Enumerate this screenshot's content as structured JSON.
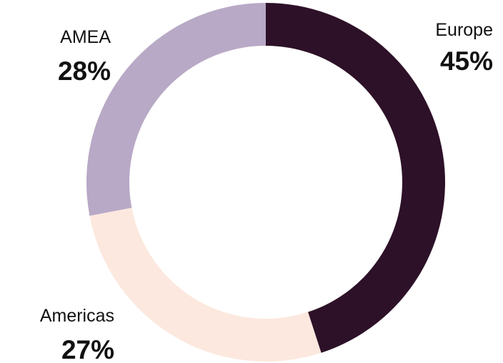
{
  "chart_data": {
    "type": "pie",
    "variant": "donut",
    "title": "",
    "legend": "none",
    "slices": [
      {
        "label": "Europe",
        "value": 45,
        "display": "45%",
        "color": "#2d1128"
      },
      {
        "label": "Americas",
        "value": 27,
        "display": "27%",
        "color": "#fce8de"
      },
      {
        "label": "AMEA",
        "value": 28,
        "display": "28%",
        "color": "#b8a9c6"
      }
    ],
    "start_angle_deg": 0,
    "direction": "clockwise"
  }
}
